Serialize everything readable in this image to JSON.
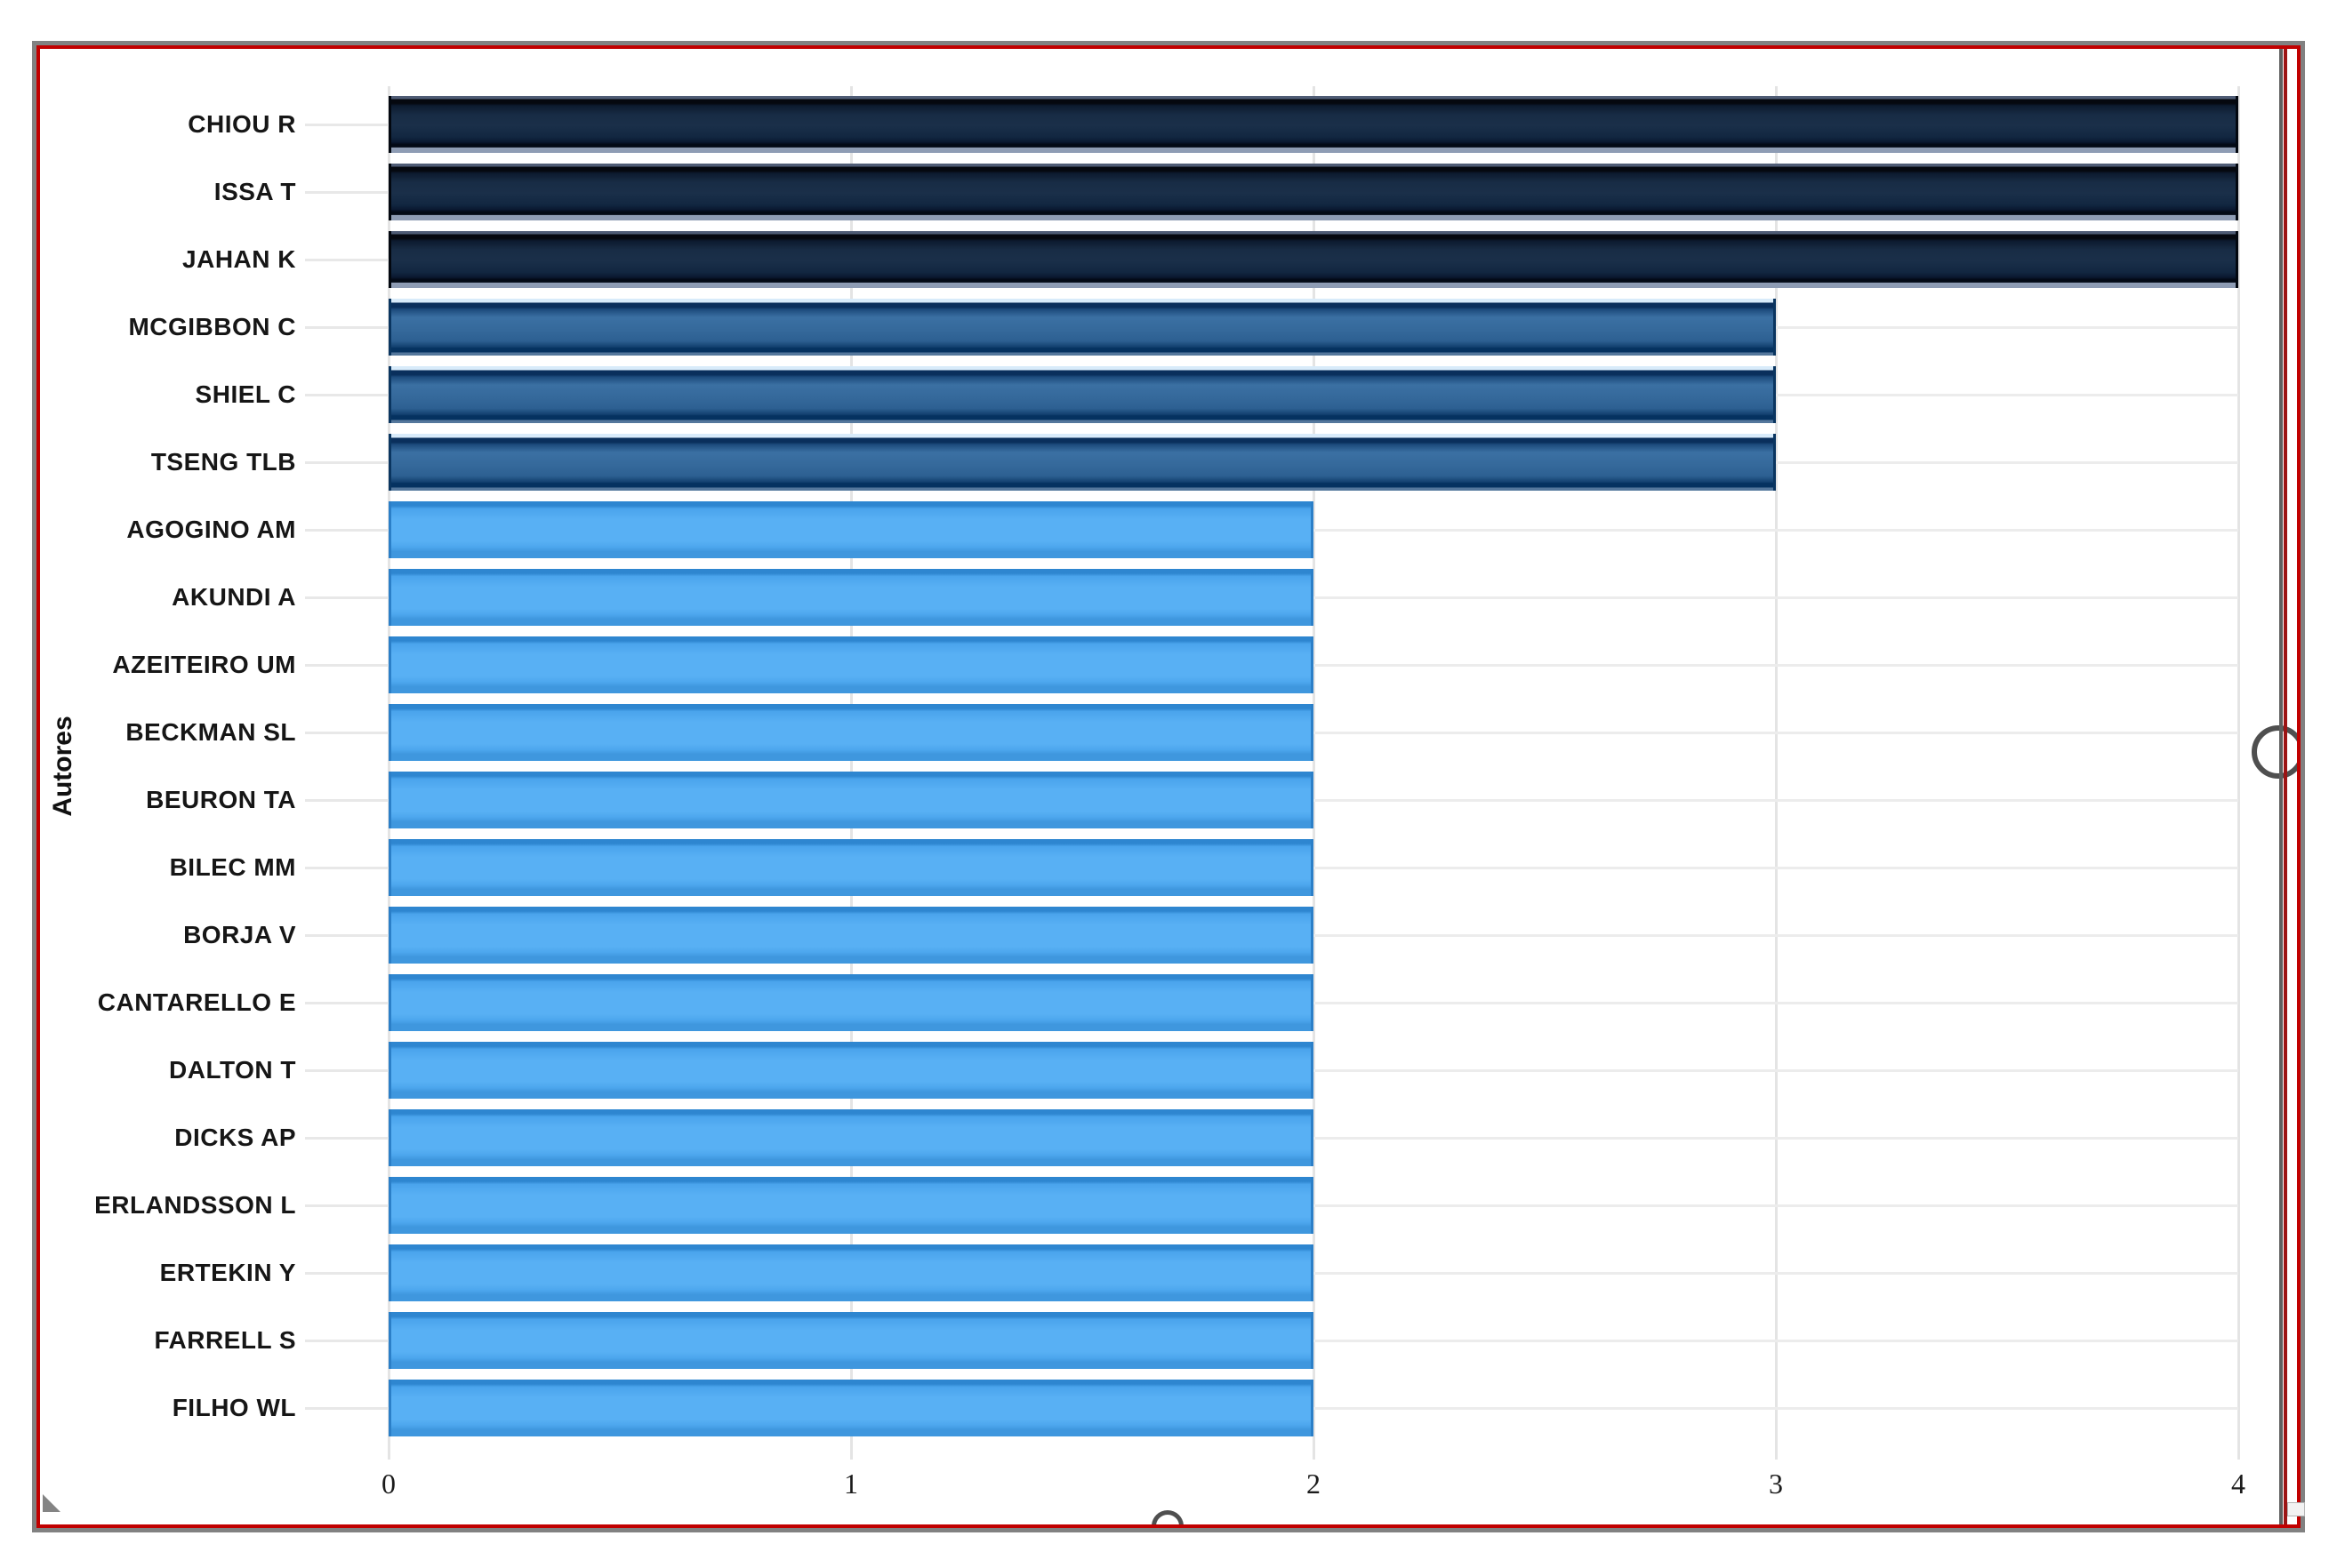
{
  "frame": {
    "outer_border_color": "#818181",
    "selection_border_color": "#c10000"
  },
  "chart_data": {
    "type": "bar",
    "orientation": "horizontal",
    "title": "",
    "xlabel": "",
    "ylabel": "Autores",
    "xlim": [
      0,
      4
    ],
    "xticks": [
      "0",
      "1",
      "2",
      "3",
      "4"
    ],
    "grid": "on",
    "gridline_color": "#e4e4e4",
    "categories": [
      "CHIOU R",
      "ISSA T",
      "JAHAN K",
      "MCGIBBON C",
      "SHIEL C",
      "TSENG TLB",
      "AGOGINO AM",
      "AKUNDI A",
      "AZEITEIRO UM",
      "BECKMAN SL",
      "BEURON TA",
      "BILEC MM",
      "BORJA V",
      "CANTARELLO E",
      "DALTON T",
      "DICKS AP",
      "ERLANDSSON L",
      "ERTEKIN Y",
      "FARRELL S",
      "FILHO WL"
    ],
    "values": [
      4,
      4,
      4,
      3,
      3,
      3,
      2,
      2,
      2,
      2,
      2,
      2,
      2,
      2,
      2,
      2,
      2,
      2,
      2,
      2
    ],
    "bar_colors": {
      "value_4": "#16293f",
      "value_3": "#35699b",
      "value_2": "#55aef3"
    }
  }
}
